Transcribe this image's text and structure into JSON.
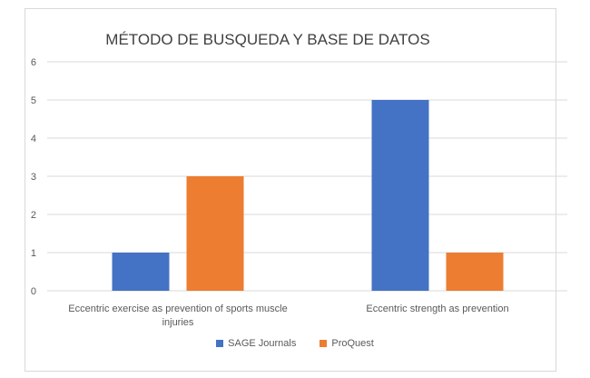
{
  "chart_data": {
    "type": "bar",
    "title": "MÉTODO DE BUSQUEDA Y BASE DE DATOS",
    "categories": [
      [
        "Eccentric exercise as prevention of sports muscle",
        "injuries"
      ],
      [
        "Eccentric strength as prevention"
      ]
    ],
    "series": [
      {
        "name": "SAGE Journals",
        "color": "#4472c4",
        "values": [
          1,
          5
        ]
      },
      {
        "name": "ProQuest",
        "color": "#ed7d31",
        "values": [
          3,
          1
        ]
      }
    ],
    "yticks": [
      "0",
      "1",
      "2",
      "3",
      "4",
      "5",
      "6"
    ],
    "ylim": [
      0,
      6
    ],
    "grid": true,
    "legend_position": "bottom"
  }
}
